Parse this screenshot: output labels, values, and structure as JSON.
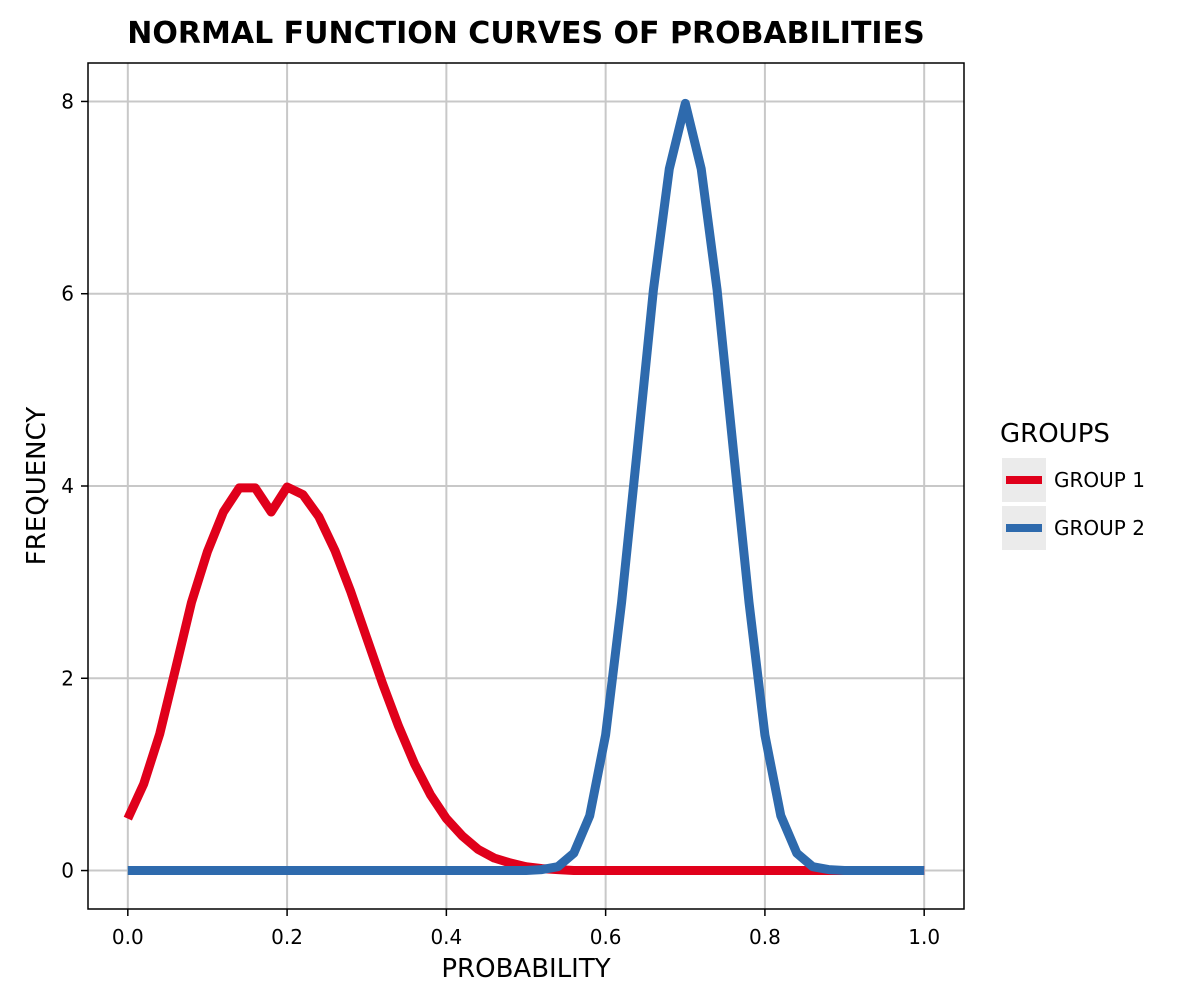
{
  "chart_data": {
    "type": "line",
    "title": "NORMAL FUNCTION CURVES OF PROBABILITIES",
    "xlabel": "PROBABILITY",
    "ylabel": "FREQUENCY",
    "xlim": [
      -0.05,
      1.05
    ],
    "ylim": [
      -0.4,
      8.4
    ],
    "x_ticks": [
      0.0,
      0.2,
      0.4,
      0.6,
      0.8,
      1.0
    ],
    "x_tick_labels": [
      "0.0",
      "0.2",
      "0.4",
      "0.6",
      "0.8",
      "1.0"
    ],
    "y_ticks": [
      0,
      2,
      4,
      6,
      8
    ],
    "y_tick_labels": [
      "0",
      "2",
      "4",
      "6",
      "8"
    ],
    "grid": true,
    "legend": {
      "title": "GROUPS",
      "position": "right"
    },
    "x": [
      0.0,
      0.02,
      0.04,
      0.06,
      0.08,
      0.1,
      0.12,
      0.14,
      0.16,
      0.18,
      0.2,
      0.22,
      0.24,
      0.26,
      0.28,
      0.3,
      0.32,
      0.34,
      0.36,
      0.38,
      0.4,
      0.42,
      0.44,
      0.46,
      0.48,
      0.5,
      0.52,
      0.54,
      0.56,
      0.58,
      0.6,
      0.62,
      0.64,
      0.66,
      0.68,
      0.7,
      0.72,
      0.74,
      0.76,
      0.78,
      0.8,
      0.82,
      0.84,
      0.86,
      0.88,
      0.9,
      0.92,
      0.94,
      0.96,
      0.98,
      1.0
    ],
    "series": [
      {
        "name": "GROUP 1",
        "color": "#e0001b",
        "values": [
          0.54,
          0.9,
          1.42,
          2.1,
          2.79,
          3.32,
          3.73,
          3.98,
          3.98,
          3.73,
          3.99,
          3.91,
          3.68,
          3.33,
          2.9,
          2.42,
          1.94,
          1.5,
          1.11,
          0.79,
          0.54,
          0.36,
          0.22,
          0.13,
          0.08,
          0.04,
          0.02,
          0.01,
          0.0,
          0.0,
          0.0,
          0.0,
          0.0,
          0.0,
          0.0,
          0.0,
          0.0,
          0.0,
          0.0,
          0.0,
          0.0,
          0.0,
          0.0,
          0.0,
          0.0,
          0.0,
          0.0,
          0.0,
          0.0,
          0.0,
          0.0
        ]
      },
      {
        "name": "GROUP 2",
        "color": "#2e6aad",
        "values": [
          0.0,
          0.0,
          0.0,
          0.0,
          0.0,
          0.0,
          0.0,
          0.0,
          0.0,
          0.0,
          0.0,
          0.0,
          0.0,
          0.0,
          0.0,
          0.0,
          0.0,
          0.0,
          0.0,
          0.0,
          0.0,
          0.0,
          0.0,
          0.0,
          0.0,
          0.0,
          0.01,
          0.04,
          0.18,
          0.57,
          1.41,
          2.79,
          4.4,
          6.04,
          7.3,
          7.98,
          7.3,
          6.04,
          4.4,
          2.79,
          1.41,
          0.57,
          0.18,
          0.04,
          0.01,
          0.0,
          0.0,
          0.0,
          0.0,
          0.0,
          0.0
        ]
      }
    ]
  }
}
